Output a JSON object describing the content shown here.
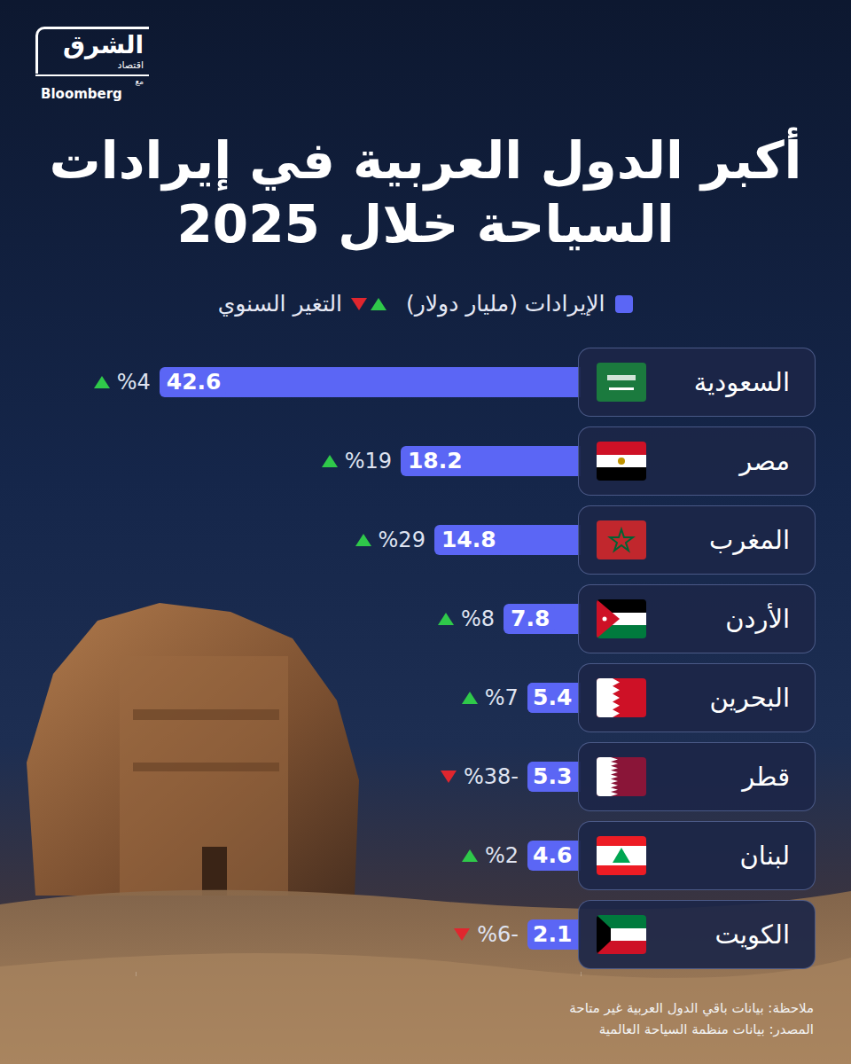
{
  "chart_data": {
    "type": "bar",
    "orientation": "horizontal",
    "data_labels": true,
    "tick_labels": false,
    "grid": false,
    "title": "أكبر الدول العربية في إيرادات\nالسياحة خلال 2025",
    "values_name": "الإيرادات (مليار دولار)",
    "changes_name": "التغير السنوي",
    "categories": [
      "السعودية",
      "مصر",
      "المغرب",
      "الأردن",
      "البحرين",
      "قطر",
      "لبنان",
      "الكويت"
    ],
    "values": [
      42.6,
      18.2,
      14.8,
      7.8,
      5.4,
      5.3,
      4.6,
      2.1
    ],
    "changes": [
      4,
      19,
      29,
      8,
      7,
      -38,
      2,
      -6
    ],
    "change_labels": [
      "%4",
      "%19",
      "%29",
      "%8",
      "%7",
      "%38-",
      "%2",
      "%6-"
    ],
    "color": "#5b66f5",
    "xlim": [
      0,
      45
    ],
    "xticks": [
      0,
      45
    ],
    "note": "ملاحظة: بيانات باقي الدول العربية غير متاحة",
    "source": "المصدر: بيانات منظمة السياحة العالمية",
    "brand": {
      "name": "الشرق",
      "section": "اقتصاد",
      "with": "مع",
      "partner": "Bloomberg"
    }
  }
}
